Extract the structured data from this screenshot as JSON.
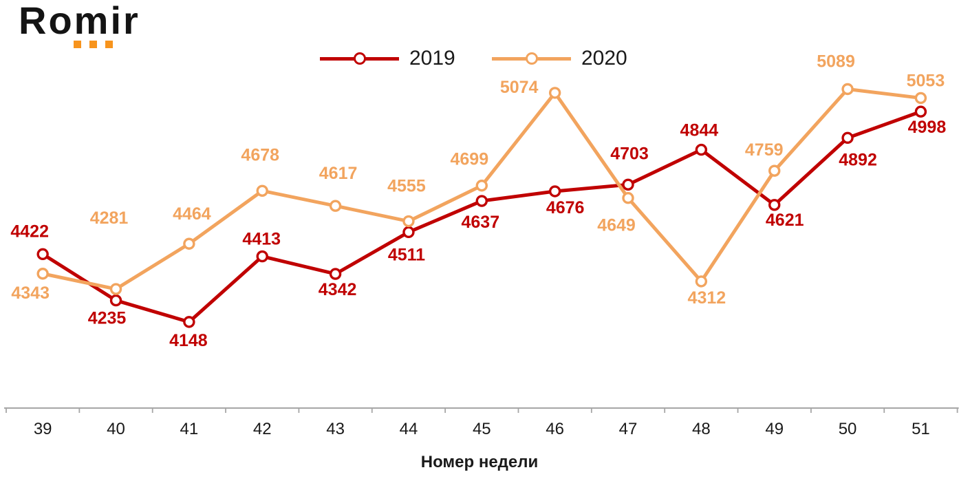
{
  "logo": {
    "text": "Romir",
    "dots_color": "#F7941D",
    "text_color": "#141414"
  },
  "chart_data": {
    "type": "line",
    "title": "",
    "xlabel": "Номер недели",
    "ylabel": "",
    "categories": [
      "39",
      "40",
      "41",
      "42",
      "43",
      "44",
      "45",
      "46",
      "47",
      "48",
      "49",
      "50",
      "51"
    ],
    "ylim": [
      3800,
      5210
    ],
    "grid": false,
    "legend_position": "top",
    "axis_color": "#A6A6A6",
    "tick_label_color": "#1a1a1a",
    "background": "#ffffff",
    "series": [
      {
        "name": "2019",
        "color": "#C00000",
        "marker": "open-circle",
        "values": [
          4422,
          4235,
          4148,
          4413,
          4342,
          4511,
          4637,
          4676,
          4703,
          4844,
          4621,
          4892,
          4998
        ],
        "label_dx": [
          -19,
          -13,
          -1,
          -1,
          3,
          -3,
          -2,
          15,
          2,
          -3,
          15,
          15,
          9
        ],
        "label_dy": [
          -25,
          34,
          35,
          -17,
          31,
          41,
          39,
          32,
          -37,
          -20,
          30,
          40,
          31
        ]
      },
      {
        "name": "2020",
        "color": "#F2A45E",
        "marker": "open-circle",
        "values": [
          4343,
          4281,
          4464,
          4678,
          4617,
          4555,
          4699,
          5074,
          4649,
          4312,
          4759,
          5089,
          5053
        ],
        "label_dx": [
          -18,
          -10,
          4,
          -3,
          4,
          -3,
          -18,
          -52,
          -17,
          8,
          -15,
          -17,
          7
        ],
        "label_dy": [
          36,
          -95,
          -35,
          -44,
          -39,
          -43,
          -30,
          0,
          48,
          32,
          -22,
          -32,
          -17
        ]
      }
    ]
  }
}
